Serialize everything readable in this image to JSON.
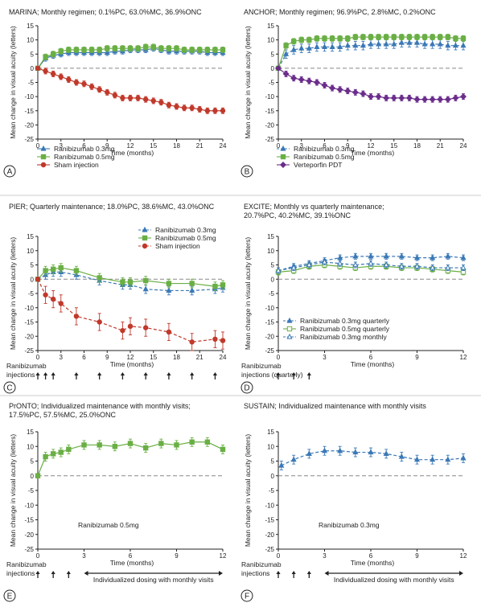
{
  "colors": {
    "blue": "#3a78b6",
    "green": "#6aaf45",
    "red": "#c0392b",
    "purple": "#6b2d8b",
    "axis": "#222222",
    "zero": "#888888"
  },
  "icons": {
    "arrow": "up-arrow-icon",
    "double_arrow": "left-right-arrow-icon",
    "circle_letter": "panel-letter-circle"
  },
  "chart_data": [
    {
      "id": "A",
      "type": "line",
      "title_lines": [
        "MARINA; Monthly regimen; 0.1%PC, 63.0%MC, 36.9%ONC"
      ],
      "xlabel": "Time (months)",
      "ylabel": "Mean change in visual acuity (letters)",
      "xlim": [
        0,
        24
      ],
      "ylim": [
        -25,
        15
      ],
      "xticks": [
        0,
        3,
        6,
        9,
        12,
        15,
        18,
        21,
        24
      ],
      "yticks": [
        15,
        10,
        5,
        0,
        -5,
        -10,
        -15,
        -20,
        -25
      ],
      "legend_position": "bottom-left",
      "series": [
        {
          "name": "Ranibizumab 0.3mg",
          "marker": "triangle",
          "color": "blue",
          "dash": false,
          "x": [
            0,
            1,
            2,
            3,
            4,
            5,
            6,
            7,
            8,
            9,
            10,
            11,
            12,
            13,
            14,
            15,
            16,
            17,
            18,
            19,
            20,
            21,
            22,
            23,
            24
          ],
          "y": [
            0,
            3.5,
            4.5,
            5,
            5.5,
            5.5,
            5.5,
            5.5,
            5.5,
            5.5,
            6,
            6,
            6.5,
            6.5,
            6.5,
            7,
            6.5,
            6,
            6,
            6,
            6,
            6,
            5.5,
            5.5,
            5.5
          ],
          "err": 1
        },
        {
          "name": "Ranibizumab 0.5mg",
          "marker": "square",
          "color": "green",
          "dash": false,
          "x": [
            0,
            1,
            2,
            3,
            4,
            5,
            6,
            7,
            8,
            9,
            10,
            11,
            12,
            13,
            14,
            15,
            16,
            17,
            18,
            19,
            20,
            21,
            22,
            23,
            24
          ],
          "y": [
            0,
            4,
            5,
            6,
            6.5,
            6.5,
            6.5,
            6.5,
            6.5,
            7,
            7,
            7,
            7,
            7,
            7.5,
            7.5,
            7,
            7,
            7,
            6.5,
            6.5,
            6.5,
            6.5,
            6.5,
            6.5
          ],
          "err": 1
        },
        {
          "name": "Sham injection",
          "marker": "circle",
          "color": "red",
          "dash": false,
          "x": [
            0,
            1,
            2,
            3,
            4,
            5,
            6,
            7,
            8,
            9,
            10,
            11,
            12,
            13,
            14,
            15,
            16,
            17,
            18,
            19,
            20,
            21,
            22,
            23,
            24
          ],
          "y": [
            0,
            -1,
            -2,
            -3,
            -4,
            -5,
            -5.5,
            -6.5,
            -7.5,
            -8.5,
            -9.5,
            -10.5,
            -10.5,
            -10.5,
            -11,
            -11.5,
            -12,
            -13,
            -13.5,
            -14,
            -14,
            -14.5,
            -15,
            -15,
            -15
          ],
          "err": 1
        }
      ]
    },
    {
      "id": "B",
      "type": "line",
      "title_lines": [
        "ANCHOR; Monthly regimen; 96.9%PC, 2.8%MC, 0.2%ONC"
      ],
      "xlabel": "Time (months)",
      "ylabel": "Mean change in visual acuity (letters)",
      "xlim": [
        0,
        24
      ],
      "ylim": [
        -25,
        15
      ],
      "xticks": [
        0,
        3,
        6,
        9,
        12,
        15,
        18,
        21,
        24
      ],
      "yticks": [
        15,
        10,
        5,
        0,
        -5,
        -10,
        -15,
        -20,
        -25
      ],
      "legend_position": "bottom-left",
      "series": [
        {
          "name": "Ranibizumab 0.3mg",
          "marker": "triangle",
          "color": "blue",
          "dash": true,
          "x": [
            0,
            1,
            2,
            3,
            4,
            5,
            6,
            7,
            8,
            9,
            10,
            11,
            12,
            13,
            14,
            15,
            16,
            17,
            18,
            19,
            20,
            21,
            22,
            23,
            24
          ],
          "y": [
            0,
            5,
            6.5,
            7,
            7,
            7.5,
            7.5,
            7.5,
            7.5,
            8,
            8,
            8,
            8.5,
            8.5,
            8.5,
            8.5,
            9,
            9,
            9,
            8.5,
            8.5,
            8.5,
            8,
            8,
            8
          ],
          "err": 1.5
        },
        {
          "name": "Ranibizumab 0.5mg",
          "marker": "square",
          "color": "green",
          "dash": false,
          "x": [
            0,
            1,
            2,
            3,
            4,
            5,
            6,
            7,
            8,
            9,
            10,
            11,
            12,
            13,
            14,
            15,
            16,
            17,
            18,
            19,
            20,
            21,
            22,
            23,
            24
          ],
          "y": [
            0,
            8,
            9.5,
            10,
            10,
            10.5,
            10.5,
            10.5,
            10.5,
            10.5,
            11,
            11,
            11,
            11,
            11,
            11,
            11,
            11,
            11,
            11,
            11,
            11,
            11,
            10.5,
            10.5
          ],
          "err": 1
        },
        {
          "name": "Verteporfin PDT",
          "marker": "diamond",
          "color": "purple",
          "dash": false,
          "x": [
            0,
            1,
            2,
            3,
            4,
            5,
            6,
            7,
            8,
            9,
            10,
            11,
            12,
            13,
            14,
            15,
            16,
            17,
            18,
            19,
            20,
            21,
            22,
            23,
            24
          ],
          "y": [
            0,
            -2,
            -3.5,
            -4,
            -4.5,
            -5,
            -6,
            -7,
            -7.5,
            -8,
            -8.5,
            -9,
            -10,
            -10,
            -10.5,
            -10.5,
            -10.5,
            -10.5,
            -11,
            -11,
            -11,
            -11,
            -11,
            -10.5,
            -10
          ],
          "err": 1
        }
      ]
    },
    {
      "id": "C",
      "type": "line",
      "title_lines": [
        "PIER; Quarterly maintenance; 18.0%PC, 38.6%MC, 43.0%ONC"
      ],
      "xlabel": "Time (months)",
      "ylabel": "Mean change in visual acuity (letters)",
      "xlim": [
        0,
        24
      ],
      "ylim": [
        -25,
        15
      ],
      "xticks": [
        0,
        3,
        6,
        9,
        12,
        15,
        18,
        21,
        24
      ],
      "yticks": [
        15,
        10,
        5,
        0,
        -5,
        -10,
        -15,
        -20,
        -25
      ],
      "legend_position": "top-right",
      "injection_label": [
        "Ranibizumab",
        "injections"
      ],
      "injection_months": [
        0,
        1,
        2,
        5,
        8,
        11,
        14,
        17,
        20,
        23
      ],
      "series": [
        {
          "name": "Ranibizumab 0.3mg",
          "marker": "triangle",
          "color": "blue",
          "dash": true,
          "x": [
            0,
            1,
            2,
            3,
            5,
            8,
            11,
            12,
            14,
            17,
            20,
            23,
            24
          ],
          "y": [
            0,
            1.5,
            2.5,
            2.5,
            1.5,
            -0.5,
            -2,
            -2,
            -3.5,
            -4,
            -4,
            -3.5,
            -3
          ],
          "err": 1.5
        },
        {
          "name": "Ranibizumab 0.5mg",
          "marker": "square",
          "color": "green",
          "dash": false,
          "x": [
            0,
            1,
            2,
            3,
            5,
            8,
            11,
            12,
            14,
            17,
            20,
            23,
            24
          ],
          "y": [
            0,
            3,
            3.5,
            4,
            3,
            0.5,
            -1,
            -1,
            -0.5,
            -1.5,
            -1.5,
            -2.5,
            -2
          ],
          "err": 1.5
        },
        {
          "name": "Sham injection",
          "marker": "circle",
          "color": "red",
          "dash": true,
          "x": [
            0,
            1,
            2,
            3,
            5,
            8,
            11,
            12,
            14,
            17,
            20,
            23,
            24
          ],
          "y": [
            0,
            -5.5,
            -7,
            -8.5,
            -13,
            -15,
            -18,
            -16.5,
            -17,
            -18.5,
            -22,
            -21,
            -21.5
          ],
          "err": 3
        }
      ]
    },
    {
      "id": "D",
      "type": "line",
      "title_lines": [
        "EXCITE; Monthly vs quarterly maintenance;",
        "20.7%PC, 40.2%MC, 39.1%ONC"
      ],
      "xlabel": "Time (months)",
      "ylabel": "Mean change in visual acuity (letters)",
      "xlim": [
        0,
        12
      ],
      "ylim": [
        -25,
        15
      ],
      "xticks": [
        0,
        3,
        6,
        9,
        12
      ],
      "yticks": [
        15,
        10,
        5,
        0,
        -5,
        -10,
        -15,
        -20,
        -25
      ],
      "legend_position": "bottom-right",
      "injection_label": [
        "Ranibizumab",
        "injections (quarterly)"
      ],
      "injection_months": [
        0,
        1,
        2
      ],
      "series": [
        {
          "name": "Ranibizumab 0.3mg quarterly",
          "marker": "triangle",
          "color": "blue",
          "dash": true,
          "x": [
            0,
            1,
            2,
            3,
            4,
            5,
            6,
            7,
            8,
            9,
            10,
            11,
            12
          ],
          "y": [
            3,
            4.5,
            5.5,
            6.5,
            7.5,
            8,
            8,
            8,
            8,
            7.5,
            7.5,
            8,
            7.5
          ],
          "err": 1
        },
        {
          "name": "Ranibizumab 0.5mg quarterly",
          "marker": "open-square",
          "color": "green",
          "dash": false,
          "x": [
            0,
            1,
            2,
            3,
            4,
            5,
            6,
            7,
            8,
            9,
            10,
            11,
            12
          ],
          "y": [
            2.5,
            3,
            4.5,
            5,
            4.5,
            4,
            4.5,
            4.5,
            4,
            4,
            3.5,
            3,
            2.5
          ],
          "err": 1
        },
        {
          "name": "Ranibizumab 0.3mg monthly",
          "marker": "open-triangle",
          "color": "blue",
          "dash": true,
          "x": [
            0,
            1,
            2,
            3,
            4,
            5,
            6,
            7,
            8,
            9,
            10,
            11,
            12
          ],
          "y": [
            3,
            4,
            5,
            6,
            5.5,
            5,
            5.5,
            5,
            4.5,
            4.5,
            4,
            4,
            4
          ],
          "err": 1
        }
      ]
    },
    {
      "id": "E",
      "type": "line",
      "title_lines": [
        "PrONTO; Individualized maintenance with monthly visits;",
        "17.5%PC, 57.5%MC, 25.0%ONC"
      ],
      "xlabel": "Time (months)",
      "ylabel": "Mean change in visual acuity (letters)",
      "xlim": [
        0,
        12
      ],
      "ylim": [
        -25,
        15
      ],
      "xticks": [
        0,
        3,
        6,
        9,
        12
      ],
      "yticks": [
        15,
        10,
        5,
        0,
        -5,
        -10,
        -15,
        -20,
        -25
      ],
      "series_label": "Ranibizumab 0.5mg",
      "injection_label": [
        "Ranibizumab",
        "injections"
      ],
      "injection_months": [
        0,
        1,
        2
      ],
      "dosing_label": "Individualized dosing with monthly visits",
      "dosing_range": [
        3,
        12
      ],
      "series": [
        {
          "name": "Ranibizumab 0.5mg",
          "marker": "square",
          "color": "green",
          "dash": false,
          "x": [
            0,
            0.5,
            1,
            1.5,
            2,
            3,
            4,
            5,
            6,
            7,
            8,
            9,
            10,
            11,
            12
          ],
          "y": [
            0,
            6.5,
            7.5,
            8,
            9,
            10.5,
            10.5,
            10,
            11,
            9.5,
            11,
            10.5,
            11.5,
            11.5,
            9
          ],
          "err": 1.5
        }
      ]
    },
    {
      "id": "F",
      "type": "line",
      "title_lines": [
        "SUSTAIN; Individualized maintenance with monthly visits"
      ],
      "xlabel": "Time (months)",
      "ylabel": "Mean change in visual acuity (letters)",
      "xlim": [
        0,
        12
      ],
      "ylim": [
        -25,
        15
      ],
      "xticks": [
        0,
        3,
        6,
        9,
        12
      ],
      "yticks": [
        15,
        10,
        5,
        0,
        -5,
        -10,
        -15,
        -20,
        -25
      ],
      "series_label": "Ranibizumab 0.3mg",
      "injection_label": [
        "Ranibizumab",
        "injections"
      ],
      "injection_months": [
        0,
        1,
        2
      ],
      "dosing_label": "Individualized dosing with monthly visits",
      "dosing_range": [
        3,
        12
      ],
      "series": [
        {
          "name": "Ranibizumab 0.3mg",
          "marker": "triangle",
          "color": "blue",
          "dash": true,
          "x": [
            0.2,
            1,
            2,
            3,
            4,
            5,
            6,
            7,
            8,
            9,
            10,
            11,
            12
          ],
          "y": [
            3.5,
            5.5,
            7.5,
            8.5,
            8.5,
            8,
            8,
            7.5,
            6.5,
            5.5,
            5.5,
            5.5,
            6
          ],
          "err": 1.5
        }
      ]
    }
  ]
}
